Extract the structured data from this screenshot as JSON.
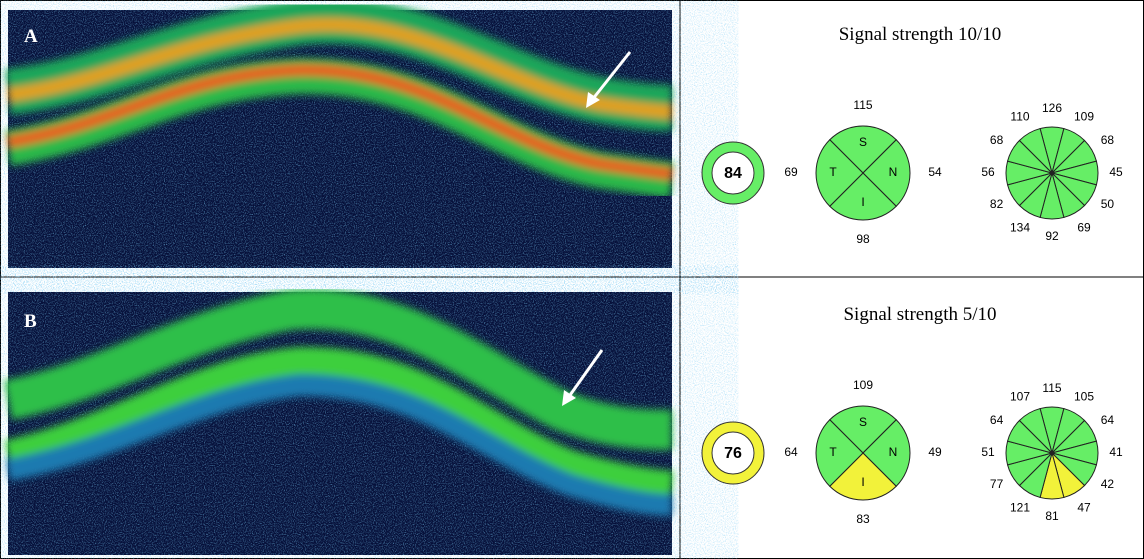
{
  "panels": [
    {
      "label": "A",
      "signal": "Signal strength 10/10",
      "average": {
        "value": 84,
        "color": "#66ee66"
      },
      "quadrants": [
        {
          "letter": "S",
          "value": 115,
          "color": "#66ee66"
        },
        {
          "letter": "N",
          "value": 54,
          "color": "#66ee66"
        },
        {
          "letter": "I",
          "value": 98,
          "color": "#66ee66"
        },
        {
          "letter": "T",
          "value": 69,
          "color": "#66ee66"
        }
      ],
      "clock_hours": [
        {
          "value": 126,
          "color": "#66ee66"
        },
        {
          "value": 109,
          "color": "#66ee66"
        },
        {
          "value": 68,
          "color": "#66ee66"
        },
        {
          "value": 45,
          "color": "#66ee66"
        },
        {
          "value": 50,
          "color": "#66ee66"
        },
        {
          "value": 69,
          "color": "#66ee66"
        },
        {
          "value": 92,
          "color": "#66ee66"
        },
        {
          "value": 134,
          "color": "#66ee66"
        },
        {
          "value": 82,
          "color": "#66ee66"
        },
        {
          "value": 56,
          "color": "#66ee66"
        },
        {
          "value": 68,
          "color": "#66ee66"
        },
        {
          "value": 110,
          "color": "#66ee66"
        }
      ]
    },
    {
      "label": "B",
      "signal": "Signal strength 5/10",
      "average": {
        "value": 76,
        "color": "#f2f23a"
      },
      "quadrants": [
        {
          "letter": "S",
          "value": 109,
          "color": "#66ee66"
        },
        {
          "letter": "N",
          "value": 49,
          "color": "#66ee66"
        },
        {
          "letter": "I",
          "value": 83,
          "color": "#f2f23a"
        },
        {
          "letter": "T",
          "value": 64,
          "color": "#66ee66"
        }
      ],
      "clock_hours": [
        {
          "value": 115,
          "color": "#66ee66"
        },
        {
          "value": 105,
          "color": "#66ee66"
        },
        {
          "value": 64,
          "color": "#66ee66"
        },
        {
          "value": 41,
          "color": "#66ee66"
        },
        {
          "value": 42,
          "color": "#66ee66"
        },
        {
          "value": 47,
          "color": "#f2f23a"
        },
        {
          "value": 81,
          "color": "#f2f23a"
        },
        {
          "value": 121,
          "color": "#66ee66"
        },
        {
          "value": 77,
          "color": "#66ee66"
        },
        {
          "value": 51,
          "color": "#66ee66"
        },
        {
          "value": 64,
          "color": "#66ee66"
        },
        {
          "value": 107,
          "color": "#66ee66"
        }
      ]
    }
  ]
}
